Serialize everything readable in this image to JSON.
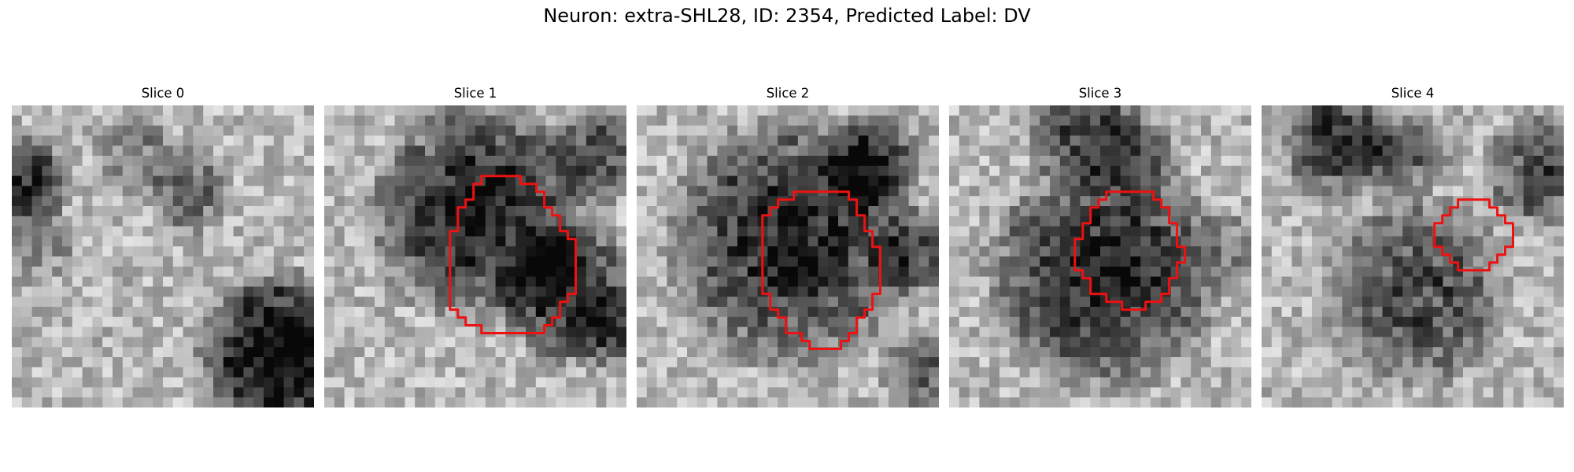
{
  "figure": {
    "title": "Neuron: extra-SHL28, ID: 2354, Predicted Label: DV"
  },
  "colors": {
    "contour": "#ee1111",
    "background": "#ffffff"
  },
  "panels": [
    {
      "title": "Slice 0",
      "has_contour": false
    },
    {
      "title": "Slice 1",
      "has_contour": true
    },
    {
      "title": "Slice 2",
      "has_contour": true
    },
    {
      "title": "Slice 3",
      "has_contour": true
    },
    {
      "title": "Slice 4",
      "has_contour": true
    }
  ]
}
